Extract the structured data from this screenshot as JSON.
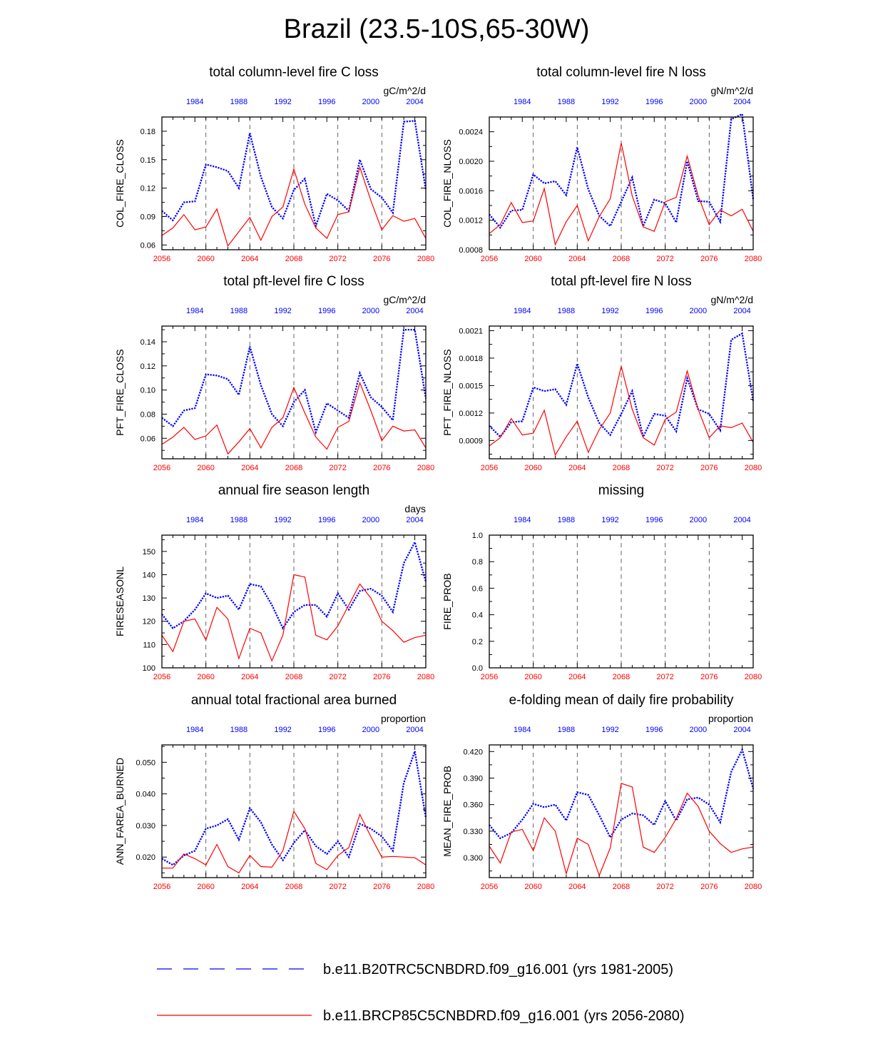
{
  "title": "Brazil (23.5-10S,65-30W)",
  "colors": {
    "blue": "#0000ff",
    "red": "#ff0000",
    "grid": "#555555"
  },
  "top_axis_ticks": [
    1984,
    1988,
    1992,
    1996,
    2000,
    2004
  ],
  "bottom_axis_ticks": [
    2056,
    2060,
    2064,
    2068,
    2072,
    2076,
    2080
  ],
  "legend": [
    {
      "label": "b.e11.B20TRC5CNBDRD.f09_g16.001 (yrs 1981-2005)",
      "color": "#0000ff",
      "style": "dashed"
    },
    {
      "label": "b.e11.BRCP85C5CNBDRD.f09_g16.001 (yrs 2056-2080)",
      "color": "#ff0000",
      "style": "solid"
    }
  ],
  "chart_data": [
    {
      "type": "line",
      "title": "total column-level fire C loss",
      "units": "gC/m^2/d",
      "ylabel": "COL_FIRE_CLOSS",
      "ylim": [
        0.055,
        0.195
      ],
      "yticks": [
        0.06,
        0.09,
        0.12,
        0.15,
        0.18
      ],
      "ytick_labels": [
        "0.06",
        "0.09",
        "0.12",
        "0.15",
        "0.18"
      ],
      "x_top": [
        1981,
        1982,
        1983,
        1984,
        1985,
        1986,
        1987,
        1988,
        1989,
        1990,
        1991,
        1992,
        1993,
        1994,
        1995,
        1996,
        1997,
        1998,
        1999,
        2000,
        2001,
        2002,
        2003,
        2004,
        2005
      ],
      "x_bottom": [
        2056,
        2057,
        2058,
        2059,
        2060,
        2061,
        2062,
        2063,
        2064,
        2065,
        2066,
        2067,
        2068,
        2069,
        2070,
        2071,
        2072,
        2073,
        2074,
        2075,
        2076,
        2077,
        2078,
        2079,
        2080
      ],
      "series": [
        {
          "name": "b.e11.B20TRC5CNBDRD.f09_g16.001 (yrs 1981-2005)",
          "color": "#0000ff",
          "values": [
            0.096,
            0.086,
            0.105,
            0.106,
            0.145,
            0.142,
            0.138,
            0.12,
            0.178,
            0.132,
            0.1,
            0.088,
            0.118,
            0.13,
            0.08,
            0.114,
            0.107,
            0.096,
            0.15,
            0.119,
            0.11,
            0.094,
            0.19,
            0.191,
            0.118
          ]
        },
        {
          "name": "b.e11.BRCP85C5CNBDRD.f09_g16.001 (yrs 2056-2080)",
          "color": "#ff0000",
          "values": [
            0.07,
            0.078,
            0.092,
            0.076,
            0.079,
            0.098,
            0.059,
            0.074,
            0.089,
            0.065,
            0.09,
            0.1,
            0.14,
            0.103,
            0.078,
            0.067,
            0.092,
            0.095,
            0.142,
            0.107,
            0.076,
            0.091,
            0.085,
            0.088,
            0.067
          ]
        }
      ]
    },
    {
      "type": "line",
      "title": "total column-level fire N loss",
      "units": "gN/m^2/d",
      "ylabel": "COL_FIRE_NLOSS",
      "ylim": [
        0.0008,
        0.0026
      ],
      "yticks": [
        0.0008,
        0.0012,
        0.0016,
        0.002,
        0.0024
      ],
      "ytick_labels": [
        "0.0008",
        "0.0012",
        "0.0016",
        "0.0020",
        "0.0024"
      ],
      "x_top": [
        1981,
        1982,
        1983,
        1984,
        1985,
        1986,
        1987,
        1988,
        1989,
        1990,
        1991,
        1992,
        1993,
        1994,
        1995,
        1996,
        1997,
        1998,
        1999,
        2000,
        2001,
        2002,
        2003,
        2004,
        2005
      ],
      "x_bottom": [
        2056,
        2057,
        2058,
        2059,
        2060,
        2061,
        2062,
        2063,
        2064,
        2065,
        2066,
        2067,
        2068,
        2069,
        2070,
        2071,
        2072,
        2073,
        2074,
        2075,
        2076,
        2077,
        2078,
        2079,
        2080
      ],
      "series": [
        {
          "name": "b.e11.B20TRC5CNBDRD.f09_g16.001 (yrs 1981-2005)",
          "color": "#0000ff",
          "values": [
            0.00128,
            0.0011,
            0.00133,
            0.00134,
            0.00182,
            0.0017,
            0.00173,
            0.00154,
            0.00219,
            0.00162,
            0.00126,
            0.00112,
            0.00145,
            0.00178,
            0.00112,
            0.00148,
            0.00143,
            0.00117,
            0.002,
            0.00146,
            0.00145,
            0.00118,
            0.00257,
            0.00264,
            0.00148
          ]
        },
        {
          "name": "b.e11.BRCP85C5CNBDRD.f09_g16.001 (yrs 2056-2080)",
          "color": "#ff0000",
          "values": [
            0.00102,
            0.00114,
            0.00144,
            0.00117,
            0.00119,
            0.00163,
            0.00087,
            0.00118,
            0.0014,
            0.00092,
            0.00125,
            0.00149,
            0.00225,
            0.00153,
            0.00111,
            0.00105,
            0.00145,
            0.00151,
            0.00207,
            0.00153,
            0.00114,
            0.00134,
            0.00126,
            0.00135,
            0.00105
          ]
        }
      ]
    },
    {
      "type": "line",
      "title": "total pft-level fire C loss",
      "units": "gC/m^2/d",
      "ylabel": "PFT_FIRE_CLOSS",
      "ylim": [
        0.043,
        0.153
      ],
      "yticks": [
        0.06,
        0.08,
        0.1,
        0.12,
        0.14
      ],
      "ytick_labels": [
        "0.06",
        "0.08",
        "0.10",
        "0.12",
        "0.14"
      ],
      "x_top": [
        1981,
        1982,
        1983,
        1984,
        1985,
        1986,
        1987,
        1988,
        1989,
        1990,
        1991,
        1992,
        1993,
        1994,
        1995,
        1996,
        1997,
        1998,
        1999,
        2000,
        2001,
        2002,
        2003,
        2004,
        2005
      ],
      "x_bottom": [
        2056,
        2057,
        2058,
        2059,
        2060,
        2061,
        2062,
        2063,
        2064,
        2065,
        2066,
        2067,
        2068,
        2069,
        2070,
        2071,
        2072,
        2073,
        2074,
        2075,
        2076,
        2077,
        2078,
        2079,
        2080
      ],
      "series": [
        {
          "name": "b.e11.B20TRC5CNBDRD.f09_g16.001 (yrs 1981-2005)",
          "color": "#0000ff",
          "values": [
            0.077,
            0.07,
            0.083,
            0.085,
            0.113,
            0.112,
            0.109,
            0.096,
            0.136,
            0.104,
            0.08,
            0.07,
            0.09,
            0.1,
            0.065,
            0.089,
            0.083,
            0.077,
            0.114,
            0.094,
            0.086,
            0.075,
            0.15,
            0.15,
            0.093
          ]
        },
        {
          "name": "b.e11.BRCP85C5CNBDRD.f09_g16.001 (yrs 2056-2080)",
          "color": "#ff0000",
          "values": [
            0.055,
            0.061,
            0.069,
            0.059,
            0.062,
            0.071,
            0.047,
            0.057,
            0.068,
            0.052,
            0.069,
            0.077,
            0.102,
            0.081,
            0.061,
            0.051,
            0.069,
            0.074,
            0.106,
            0.083,
            0.058,
            0.07,
            0.066,
            0.067,
            0.052
          ]
        }
      ]
    },
    {
      "type": "line",
      "title": "total pft-level fire N loss",
      "units": "gN/m^2/d",
      "ylabel": "PFT_FIRE_NLOSS",
      "ylim": [
        0.0007,
        0.00215
      ],
      "yticks": [
        0.0009,
        0.0012,
        0.0015,
        0.0018,
        0.0021
      ],
      "ytick_labels": [
        "0.0009",
        "0.0012",
        "0.0015",
        "0.0018",
        "0.0021"
      ],
      "x_top": [
        1981,
        1982,
        1983,
        1984,
        1985,
        1986,
        1987,
        1988,
        1989,
        1990,
        1991,
        1992,
        1993,
        1994,
        1995,
        1996,
        1997,
        1998,
        1999,
        2000,
        2001,
        2002,
        2003,
        2004,
        2005
      ],
      "x_bottom": [
        2056,
        2057,
        2058,
        2059,
        2060,
        2061,
        2062,
        2063,
        2064,
        2065,
        2066,
        2067,
        2068,
        2069,
        2070,
        2071,
        2072,
        2073,
        2074,
        2075,
        2076,
        2077,
        2078,
        2079,
        2080
      ],
      "series": [
        {
          "name": "b.e11.B20TRC5CNBDRD.f09_g16.001 (yrs 1981-2005)",
          "color": "#0000ff",
          "values": [
            0.00106,
            0.00094,
            0.0011,
            0.00111,
            0.00148,
            0.00144,
            0.00146,
            0.00129,
            0.00174,
            0.00137,
            0.00109,
            0.00096,
            0.00119,
            0.00144,
            0.00094,
            0.00119,
            0.00117,
            0.001,
            0.00158,
            0.00124,
            0.00119,
            0.00101,
            0.002,
            0.00207,
            0.00133
          ]
        },
        {
          "name": "b.e11.BRCP85C5CNBDRD.f09_g16.001 (yrs 2056-2080)",
          "color": "#ff0000",
          "values": [
            0.00084,
            0.00093,
            0.00114,
            0.00096,
            0.00098,
            0.00123,
            0.00074,
            0.00094,
            0.00111,
            0.00077,
            0.00102,
            0.0012,
            0.00171,
            0.00124,
            0.00093,
            0.00085,
            0.00113,
            0.00121,
            0.00166,
            0.00124,
            0.00093,
            0.00106,
            0.00104,
            0.00109,
            0.00088
          ]
        }
      ]
    },
    {
      "type": "line",
      "title": "annual fire season length",
      "units": "days",
      "ylabel": "FIRESEASONL",
      "ylim": [
        100,
        157
      ],
      "yticks": [
        100,
        110,
        120,
        130,
        140,
        150
      ],
      "ytick_labels": [
        "100",
        "110",
        "120",
        "130",
        "140",
        "150"
      ],
      "x_top": [
        1981,
        1982,
        1983,
        1984,
        1985,
        1986,
        1987,
        1988,
        1989,
        1990,
        1991,
        1992,
        1993,
        1994,
        1995,
        1996,
        1997,
        1998,
        1999,
        2000,
        2001,
        2002,
        2003,
        2004,
        2005
      ],
      "x_bottom": [
        2056,
        2057,
        2058,
        2059,
        2060,
        2061,
        2062,
        2063,
        2064,
        2065,
        2066,
        2067,
        2068,
        2069,
        2070,
        2071,
        2072,
        2073,
        2074,
        2075,
        2076,
        2077,
        2078,
        2079,
        2080
      ],
      "series": [
        {
          "name": "b.e11.B20TRC5CNBDRD.f09_g16.001 (yrs 1981-2005)",
          "color": "#0000ff",
          "values": [
            123,
            117,
            120,
            125,
            132,
            130,
            131,
            125,
            136,
            135,
            127,
            117,
            124,
            127,
            127,
            122,
            132,
            125,
            133,
            134,
            131,
            124,
            145,
            154,
            137
          ]
        },
        {
          "name": "b.e11.BRCP85C5CNBDRD.f09_g16.001 (yrs 2056-2080)",
          "color": "#ff0000",
          "values": [
            114,
            107,
            120,
            121,
            112,
            126,
            121,
            104,
            117,
            115,
            103,
            114,
            140,
            139,
            114,
            112,
            118,
            127,
            136,
            130,
            120,
            116,
            111,
            113,
            114
          ]
        }
      ]
    },
    {
      "type": "line",
      "title": "missing",
      "units": "",
      "ylabel": "FIRE_PROB",
      "ylim": [
        0,
        1
      ],
      "yticks": [
        0,
        0.2,
        0.4,
        0.6,
        0.8,
        1.0
      ],
      "ytick_labels": [
        "0.0",
        "0.2",
        "0.4",
        "0.6",
        "0.8",
        "1.0"
      ],
      "x_top": [
        1981,
        1982,
        1983,
        1984,
        1985,
        1986,
        1987,
        1988,
        1989,
        1990,
        1991,
        1992,
        1993,
        1994,
        1995,
        1996,
        1997,
        1998,
        1999,
        2000,
        2001,
        2002,
        2003,
        2004,
        2005
      ],
      "x_bottom": [
        2056,
        2057,
        2058,
        2059,
        2060,
        2061,
        2062,
        2063,
        2064,
        2065,
        2066,
        2067,
        2068,
        2069,
        2070,
        2071,
        2072,
        2073,
        2074,
        2075,
        2076,
        2077,
        2078,
        2079,
        2080
      ],
      "series": []
    },
    {
      "type": "line",
      "title": "annual total fractional area burned",
      "units": "proportion",
      "ylabel": "ANN_FAREA_BURNED",
      "ylim": [
        0.0135,
        0.0555
      ],
      "yticks": [
        0.02,
        0.03,
        0.04,
        0.05
      ],
      "ytick_labels": [
        "0.020",
        "0.030",
        "0.040",
        "0.050"
      ],
      "x_top": [
        1981,
        1982,
        1983,
        1984,
        1985,
        1986,
        1987,
        1988,
        1989,
        1990,
        1991,
        1992,
        1993,
        1994,
        1995,
        1996,
        1997,
        1998,
        1999,
        2000,
        2001,
        2002,
        2003,
        2004,
        2005
      ],
      "x_bottom": [
        2056,
        2057,
        2058,
        2059,
        2060,
        2061,
        2062,
        2063,
        2064,
        2065,
        2066,
        2067,
        2068,
        2069,
        2070,
        2071,
        2072,
        2073,
        2074,
        2075,
        2076,
        2077,
        2078,
        2079,
        2080
      ],
      "series": [
        {
          "name": "b.e11.B20TRC5CNBDRD.f09_g16.001 (yrs 1981-2005)",
          "color": "#0000ff",
          "values": [
            0.0195,
            0.0175,
            0.0205,
            0.022,
            0.029,
            0.03,
            0.032,
            0.0255,
            0.0355,
            0.031,
            0.024,
            0.019,
            0.0245,
            0.0285,
            0.0235,
            0.021,
            0.025,
            0.02,
            0.0305,
            0.029,
            0.0265,
            0.022,
            0.0435,
            0.0535,
            0.0325
          ]
        },
        {
          "name": "b.e11.BRCP85C5CNBDRD.f09_g16.001 (yrs 2056-2080)",
          "color": "#ff0000",
          "values": [
            0.0165,
            0.0165,
            0.021,
            0.0195,
            0.0175,
            0.024,
            0.017,
            0.015,
            0.0205,
            0.017,
            0.0168,
            0.022,
            0.0345,
            0.029,
            0.018,
            0.016,
            0.0205,
            0.023,
            0.0335,
            0.0265,
            0.02,
            0.0202,
            0.02,
            0.0198,
            0.0175
          ]
        }
      ]
    },
    {
      "type": "line",
      "title": "e-folding mean of daily fire probability",
      "units": "proportion",
      "ylabel": "MEAN_FIRE_PROB",
      "ylim": [
        0.2775,
        0.4275
      ],
      "yticks": [
        0.3,
        0.33,
        0.36,
        0.39,
        0.42
      ],
      "ytick_labels": [
        "0.300",
        "0.330",
        "0.360",
        "0.390",
        "0.420"
      ],
      "x_top": [
        1981,
        1982,
        1983,
        1984,
        1985,
        1986,
        1987,
        1988,
        1989,
        1990,
        1991,
        1992,
        1993,
        1994,
        1995,
        1996,
        1997,
        1998,
        1999,
        2000,
        2001,
        2002,
        2003,
        2004,
        2005
      ],
      "x_bottom": [
        2056,
        2057,
        2058,
        2059,
        2060,
        2061,
        2062,
        2063,
        2064,
        2065,
        2066,
        2067,
        2068,
        2069,
        2070,
        2071,
        2072,
        2073,
        2074,
        2075,
        2076,
        2077,
        2078,
        2079,
        2080
      ],
      "series": [
        {
          "name": "b.e11.B20TRC5CNBDRD.f09_g16.001 (yrs 1981-2005)",
          "color": "#0000ff",
          "values": [
            0.337,
            0.322,
            0.328,
            0.343,
            0.361,
            0.357,
            0.36,
            0.342,
            0.374,
            0.371,
            0.348,
            0.323,
            0.343,
            0.35,
            0.348,
            0.337,
            0.364,
            0.342,
            0.366,
            0.368,
            0.36,
            0.34,
            0.397,
            0.422,
            0.378
          ]
        },
        {
          "name": "b.e11.BRCP85C5CNBDRD.f09_g16.001 (yrs 2056-2080)",
          "color": "#ff0000",
          "values": [
            0.313,
            0.294,
            0.329,
            0.332,
            0.308,
            0.345,
            0.33,
            0.282,
            0.322,
            0.315,
            0.28,
            0.311,
            0.384,
            0.38,
            0.312,
            0.306,
            0.323,
            0.344,
            0.373,
            0.358,
            0.33,
            0.316,
            0.306,
            0.31,
            0.312
          ]
        }
      ]
    }
  ]
}
